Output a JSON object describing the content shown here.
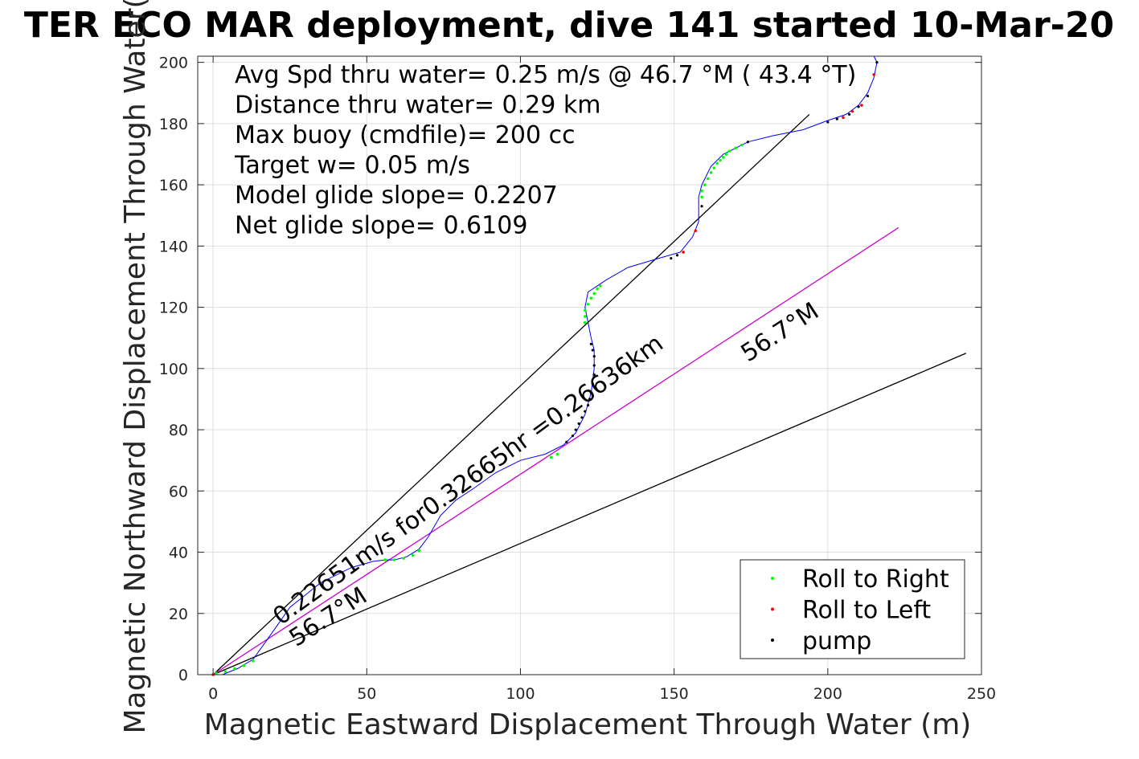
{
  "chart_data": {
    "type": "line",
    "title": "TER ECO MAR deployment, dive 141 started 10-Mar-20",
    "xlabel": "Magnetic Eastward Displacement Through Water (m)",
    "ylabel": "Magnetic Northward Displacement Through Water(",
    "xlim": [
      -5,
      250
    ],
    "ylim": [
      0,
      202
    ],
    "xticks": [
      0,
      50,
      100,
      150,
      200,
      250
    ],
    "yticks": [
      0,
      20,
      40,
      60,
      80,
      100,
      120,
      140,
      160,
      180,
      200
    ],
    "grid": true,
    "info_lines": [
      "Avg Spd thru water=  0.25 m/s @  46.7 °M ( 43.4 °T)",
      "Distance thru water=  0.29 km",
      "Max buoy (cmdfile)= 200 cc",
      "Target w= 0.05 m/s",
      "Model glide slope= 0.2207",
      "Net glide slope= 0.6109"
    ],
    "annotations": [
      {
        "text": "0.22651m/s for0.32665hr =0.26636km",
        "x": 22,
        "y": 16,
        "angle": -36
      },
      {
        "text": "56.7°M",
        "x": 27,
        "y": 9,
        "angle": -33
      },
      {
        "text": "56.7°M",
        "x": 174,
        "y": 102,
        "angle": -33
      }
    ],
    "legend": {
      "placement": "bottom-right",
      "entries": [
        {
          "label": "Roll to Right",
          "color": "#00ff00"
        },
        {
          "label": "Roll to Left",
          "color": "#ff0000"
        },
        {
          "label": "pump",
          "color": "#000000"
        }
      ]
    },
    "lines": [
      {
        "color": "#000000",
        "x": [
          0,
          194
        ],
        "y": [
          0,
          183
        ]
      },
      {
        "color": "#000000",
        "x": [
          0,
          245
        ],
        "y": [
          0,
          105
        ]
      },
      {
        "color": "#cc00cc",
        "x": [
          0,
          223
        ],
        "y": [
          0,
          146
        ]
      }
    ],
    "track": {
      "color": "#0000ff",
      "x": [
        0,
        3,
        8,
        13,
        18,
        25,
        35,
        45,
        52,
        56,
        59,
        63,
        67,
        70,
        74,
        79,
        85,
        92,
        100,
        108,
        114,
        118,
        121,
        123,
        124,
        124,
        123,
        122,
        121,
        122,
        125,
        128,
        135,
        145,
        152,
        156,
        158,
        158,
        159,
        162,
        166,
        170,
        174,
        182,
        192,
        200,
        206,
        210,
        213,
        215,
        216,
        215
      ],
      "y": [
        0,
        0,
        2,
        5,
        12,
        22,
        30,
        35,
        37,
        37.5,
        37.5,
        38.5,
        41,
        45,
        52,
        57,
        61,
        66,
        70,
        72,
        75,
        79,
        85,
        92,
        100,
        106,
        110,
        115,
        120,
        125,
        127,
        129,
        133,
        136,
        138,
        143,
        148,
        156,
        160,
        166,
        170,
        172,
        174,
        176,
        178,
        181,
        183,
        186,
        190,
        195,
        200,
        205
      ]
    },
    "markers": {
      "roll_right": {
        "color": "#00ff00",
        "x": [
          1,
          4,
          7,
          10,
          13,
          56,
          59,
          62,
          65,
          67,
          110,
          112,
          121,
          121,
          121,
          122,
          123,
          124,
          125,
          126,
          159,
          159,
          160,
          161,
          162,
          163,
          164,
          165,
          166,
          167,
          168,
          170,
          172
        ],
        "y": [
          0.5,
          1,
          2,
          3,
          4.5,
          37.5,
          37.5,
          38,
          39,
          40.5,
          71,
          72,
          115,
          117,
          119,
          121,
          123,
          124.5,
          126,
          127,
          156,
          158,
          160,
          162,
          164,
          165.5,
          167,
          168,
          169,
          170,
          171,
          172,
          173
        ]
      },
      "roll_left": {
        "color": "#ff0000",
        "x": [
          0,
          153,
          157,
          205,
          208,
          211,
          215
        ],
        "y": [
          0,
          138,
          145,
          182,
          184,
          186,
          196
        ]
      },
      "pump": {
        "color": "#000000",
        "x": [
          115,
          117,
          118,
          119,
          120,
          121,
          122,
          122.5,
          123,
          123.5,
          124,
          124,
          124,
          123.5,
          123,
          149,
          151,
          159,
          174,
          200,
          203,
          207,
          210,
          213,
          216
        ],
        "y": [
          76,
          78,
          80,
          82,
          84,
          86,
          88,
          90,
          92,
          95,
          98,
          101,
          104,
          106,
          108,
          136,
          137,
          153,
          174,
          180.5,
          181.5,
          183,
          185.5,
          189,
          200
        ]
      }
    }
  }
}
